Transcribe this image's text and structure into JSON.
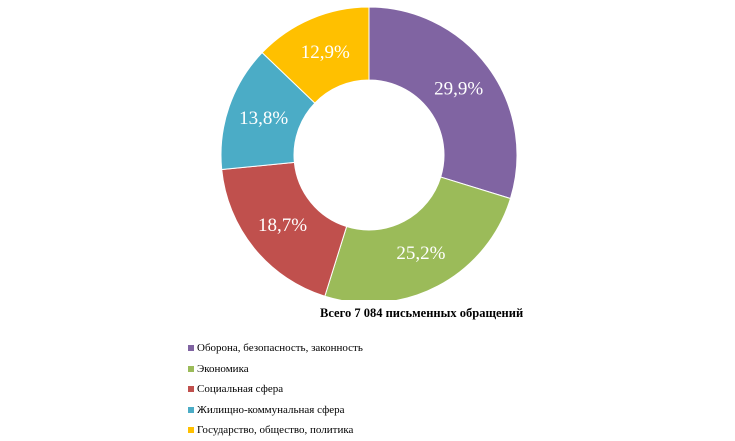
{
  "chart_data": {
    "type": "pie",
    "variant": "doughnut",
    "caption": "Всего 7 084 письменных обращений",
    "legend_position": "bottom-left",
    "series": [
      {
        "label": "Оборона, безопасность, законность",
        "value": 29.9,
        "value_label": "29,9%",
        "color": "#8064A2"
      },
      {
        "label": "Экономика",
        "value": 25.2,
        "value_label": "25,2%",
        "color": "#9BBB59"
      },
      {
        "label": "Социальная сфера",
        "value": 18.7,
        "value_label": "18,7%",
        "color": "#C0504D"
      },
      {
        "label": "Жилищно-коммунальная сфера",
        "value": 13.8,
        "value_label": "13,8%",
        "color": "#4BACC6"
      },
      {
        "label": "Государство, общество, политика",
        "value": 12.9,
        "value_label": "12,9%",
        "color": "#FFC000"
      }
    ]
  }
}
